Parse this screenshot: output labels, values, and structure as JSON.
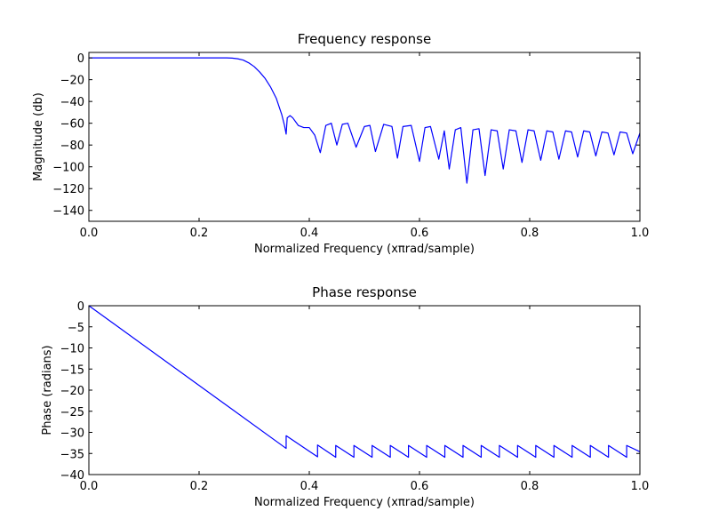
{
  "chart_data": [
    {
      "type": "line",
      "title": "Frequency response",
      "xlabel": "Normalized Frequency (xπrad/sample)",
      "ylabel": "Magnitude (db)",
      "xlim": [
        0.0,
        1.0
      ],
      "ylim": [
        -150,
        5
      ],
      "xticks": [
        "0.0",
        "0.2",
        "0.4",
        "0.6",
        "0.8",
        "1.0"
      ],
      "yticks": [
        "0",
        "−20",
        "−40",
        "−60",
        "−80",
        "−100",
        "−120",
        "−140"
      ],
      "grid": false,
      "line_color": "#0000ff",
      "series": [
        {
          "x": [
            0.0,
            0.05,
            0.1,
            0.15,
            0.2,
            0.25,
            0.26,
            0.27,
            0.28,
            0.29,
            0.3,
            0.31,
            0.32,
            0.33,
            0.34,
            0.35,
            0.355,
            0.358,
            0.36,
            0.365,
            0.37,
            0.38,
            0.39,
            0.4,
            0.41,
            0.42,
            0.43,
            0.44,
            0.45,
            0.46,
            0.47,
            0.485,
            0.5,
            0.51,
            0.52,
            0.535,
            0.55,
            0.56,
            0.57,
            0.585,
            0.6,
            0.61,
            0.62,
            0.635,
            0.645,
            0.654,
            0.665,
            0.675,
            0.686,
            0.697,
            0.708,
            0.719,
            0.73,
            0.741,
            0.752,
            0.763,
            0.775,
            0.786,
            0.797,
            0.808,
            0.82,
            0.831,
            0.842,
            0.853,
            0.865,
            0.876,
            0.887,
            0.898,
            0.909,
            0.92,
            0.931,
            0.942,
            0.953,
            0.964,
            0.976,
            0.987,
            1.0
          ],
          "y": [
            0,
            0,
            0,
            0,
            0,
            0,
            -0.2,
            -0.8,
            -2,
            -4.5,
            -8,
            -13,
            -19,
            -27,
            -37,
            -52,
            -62,
            -70,
            -55,
            -53,
            -55,
            -62,
            -64,
            -64,
            -71,
            -87,
            -62,
            -60,
            -80,
            -61,
            -60,
            -82,
            -63,
            -62,
            -86,
            -61,
            -63,
            -92,
            -63,
            -62,
            -95,
            -64,
            -63,
            -93,
            -67,
            -102,
            -66,
            -64,
            -115,
            -66,
            -65,
            -108,
            -66,
            -67,
            -102,
            -66,
            -67,
            -96,
            -66,
            -67,
            -94,
            -67,
            -68,
            -93,
            -67,
            -68,
            -91,
            -67,
            -68,
            -90,
            -68,
            -69,
            -89,
            -68,
            -69,
            -88,
            -69
          ]
        }
      ]
    },
    {
      "type": "line",
      "title": "Phase response",
      "xlabel": "Normalized Frequency (xπrad/sample)",
      "ylabel": "Phase (radians)",
      "xlim": [
        0.0,
        1.0
      ],
      "ylim": [
        -40,
        0
      ],
      "xticks": [
        "0.0",
        "0.2",
        "0.4",
        "0.6",
        "0.8",
        "1.0"
      ],
      "yticks": [
        "0",
        "−5",
        "−10",
        "−15",
        "−20",
        "−25",
        "−30",
        "−35",
        "−40"
      ],
      "grid": false,
      "line_color": "#0000ff",
      "series": [
        {
          "x": [
            0.0,
            0.358,
            0.358,
            0.415,
            0.415,
            0.448,
            0.448,
            0.481,
            0.481,
            0.514,
            0.514,
            0.547,
            0.547,
            0.58,
            0.58,
            0.613,
            0.613,
            0.646,
            0.646,
            0.679,
            0.679,
            0.712,
            0.712,
            0.745,
            0.745,
            0.778,
            0.778,
            0.811,
            0.811,
            0.844,
            0.844,
            0.877,
            0.877,
            0.91,
            0.91,
            0.943,
            0.943,
            0.976,
            0.976,
            1.0
          ],
          "y": [
            0,
            -33.8,
            -30.8,
            -35.8,
            -33.0,
            -35.9,
            -33.1,
            -35.9,
            -33.1,
            -35.9,
            -33.1,
            -35.9,
            -33.1,
            -35.9,
            -33.1,
            -35.9,
            -33.1,
            -35.9,
            -33.1,
            -35.9,
            -33.1,
            -35.9,
            -33.1,
            -35.9,
            -33.1,
            -35.9,
            -33.1,
            -35.9,
            -33.1,
            -35.9,
            -33.1,
            -35.9,
            -33.1,
            -35.9,
            -33.1,
            -35.9,
            -33.1,
            -35.9,
            -33.1,
            -34.6
          ]
        }
      ]
    }
  ]
}
